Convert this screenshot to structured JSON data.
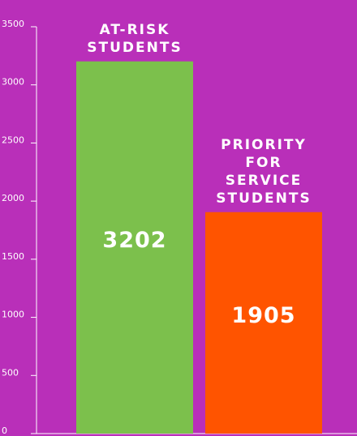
{
  "chart_data": {
    "type": "bar",
    "categories": [
      "AT-RISK STUDENTS",
      "PRIORITY FOR SERVICE STUDENTS"
    ],
    "values": [
      3202,
      1905
    ],
    "colors": [
      "#7cc04c",
      "#ff5400"
    ],
    "ylim": [
      0,
      3500
    ],
    "yticks": [
      0,
      500,
      1000,
      1500,
      2000,
      2500,
      3000,
      3500
    ]
  }
}
